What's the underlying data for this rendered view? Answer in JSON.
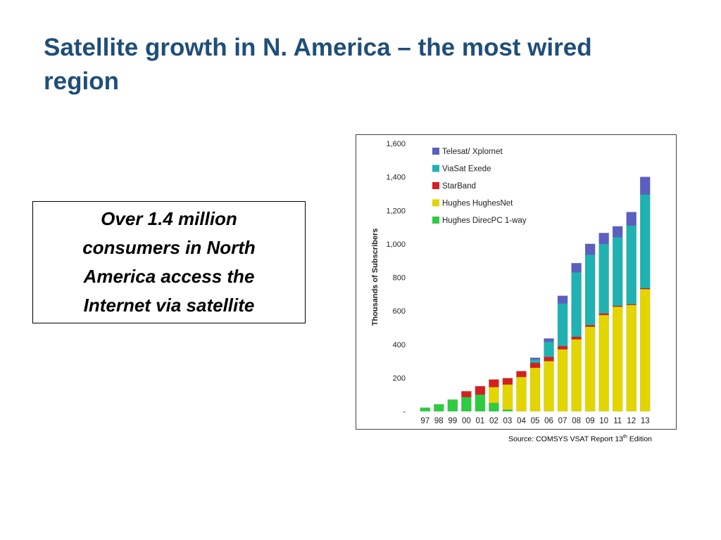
{
  "slide": {
    "title": "Satellite growth in N. America – the most wired region",
    "callout": "Over 1.4 million consumers in North America access the Internet via satellite",
    "source_prefix": "Source: COMSYS VSAT Report 13",
    "source_sup": "th",
    "source_suffix": " Edition"
  },
  "chart_data": {
    "type": "bar",
    "stacked": true,
    "title": "",
    "xlabel": "",
    "ylabel": "Thousands of Subscribers",
    "ylim": [
      0,
      1600
    ],
    "yticks": [
      0,
      200,
      400,
      600,
      800,
      1000,
      1200,
      1400,
      1600
    ],
    "ytick_labels": [
      "-",
      "200",
      "400",
      "600",
      "800",
      "1,000",
      "1,200",
      "1,400",
      "1,600"
    ],
    "grid": false,
    "legend_position": "top-left",
    "categories": [
      "97",
      "98",
      "99",
      "00",
      "01",
      "02",
      "03",
      "04",
      "05",
      "06",
      "07",
      "08",
      "09",
      "10",
      "11",
      "12",
      "13"
    ],
    "series": [
      {
        "name": "Hughes DirecPC 1-way",
        "color": "#2ecc40",
        "values": [
          22,
          42,
          70,
          85,
          100,
          50,
          10,
          0,
          0,
          0,
          0,
          0,
          0,
          0,
          0,
          0,
          0
        ]
      },
      {
        "name": "Hughes HughesNet",
        "color": "#e3d600",
        "values": [
          0,
          0,
          0,
          0,
          0,
          95,
          150,
          205,
          260,
          300,
          370,
          430,
          505,
          575,
          625,
          635,
          730
        ]
      },
      {
        "name": "StarBand",
        "color": "#d62020",
        "values": [
          0,
          0,
          0,
          35,
          50,
          45,
          38,
          35,
          30,
          25,
          20,
          15,
          10,
          10,
          5,
          5,
          5
        ]
      },
      {
        "name": "ViaSat Exede",
        "color": "#20b2b2",
        "values": [
          0,
          0,
          0,
          0,
          0,
          0,
          0,
          0,
          20,
          90,
          255,
          385,
          420,
          415,
          410,
          470,
          560
        ]
      },
      {
        "name": "Telesat/ Xplornet",
        "color": "#5a5fc0",
        "values": [
          0,
          0,
          0,
          0,
          0,
          0,
          0,
          0,
          10,
          20,
          45,
          55,
          65,
          65,
          65,
          80,
          105
        ]
      }
    ]
  }
}
